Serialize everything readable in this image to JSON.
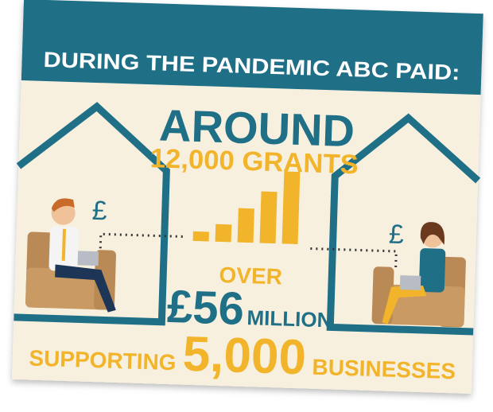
{
  "header": {
    "title": "DURING THE PANDEMIC ABC PAID:"
  },
  "stats": {
    "grants": {
      "prefix": "AROUND",
      "value": "12,000 GRANTS"
    },
    "money": {
      "prefix": "OVER",
      "amount": "£56",
      "unit": "MILLION"
    },
    "businesses": {
      "prefix": "SUPPORTING",
      "amount": "5,000",
      "unit": "BUSINESSES"
    }
  },
  "icons": {
    "left_currency": "£",
    "right_currency": "£"
  }
}
